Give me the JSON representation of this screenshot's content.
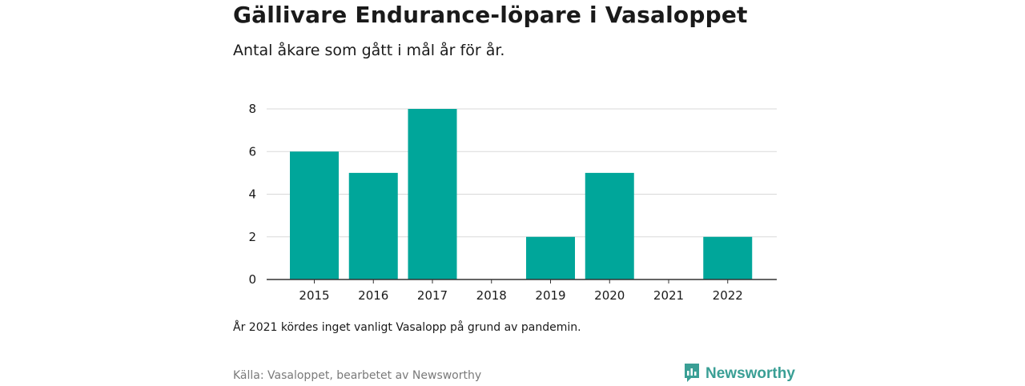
{
  "title": "Gällivare Endurance-löpare i Vasaloppet",
  "subtitle": "Antal åkare som gått i mål år för år.",
  "note": "År 2021 kördes inget vanligt Vasalopp på grund av pandemin.",
  "source": "Källa: Vasaloppet, bearbetet av Newsworthy",
  "brand": {
    "name": "Newsworthy",
    "color": "#3a9f95"
  },
  "colors": {
    "bar": "#00a69a",
    "grid": "#d9d9d9",
    "axis": "#333333"
  },
  "chart_data": {
    "type": "bar",
    "categories": [
      "2015",
      "2016",
      "2017",
      "2018",
      "2019",
      "2020",
      "2021",
      "2022"
    ],
    "values": [
      6,
      5,
      8,
      0,
      2,
      5,
      0,
      2
    ],
    "ylim": [
      0,
      8
    ],
    "yticks": [
      0,
      2,
      4,
      6,
      8
    ],
    "grid": true,
    "xlabel": "",
    "ylabel": ""
  }
}
